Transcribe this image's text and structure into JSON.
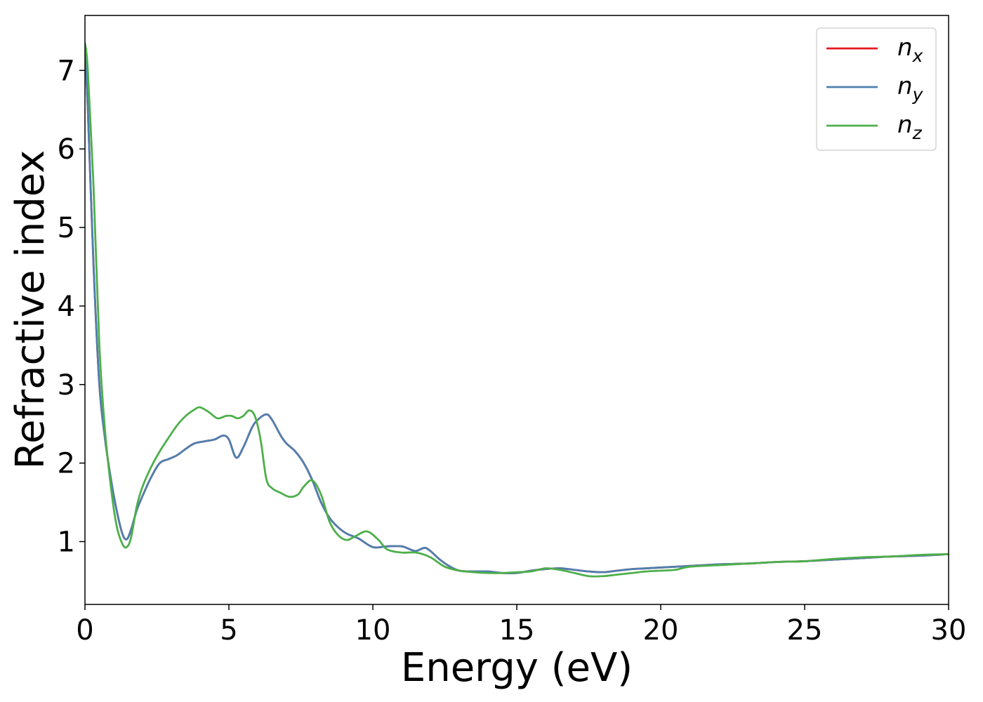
{
  "chart_data": {
    "type": "line",
    "title": "",
    "xlabel": "Energy (eV)",
    "ylabel": "Refractive index",
    "xlim": [
      0,
      30
    ],
    "ylim": [
      0.2,
      7.7
    ],
    "xticks": [
      0,
      5,
      10,
      15,
      20,
      25,
      30
    ],
    "yticks": [
      1,
      2,
      3,
      4,
      5,
      6,
      7
    ],
    "grid": false,
    "legend_position": "top-right",
    "series": [
      {
        "name": "n",
        "subscript": "x",
        "color": "#e41a1c",
        "x": [
          0,
          0.1,
          0.3,
          0.5,
          0.7,
          0.9,
          1.1,
          1.3,
          1.45,
          1.6,
          1.8,
          2.0,
          2.3,
          2.6,
          2.9,
          3.2,
          3.5,
          3.8,
          4.2,
          4.5,
          4.8,
          5.0,
          5.25,
          5.5,
          5.8,
          6.0,
          6.3,
          6.5,
          6.8,
          7.0,
          7.3,
          7.6,
          7.9,
          8.2,
          8.5,
          8.8,
          9.1,
          9.5,
          10.0,
          10.5,
          11.0,
          11.3,
          11.5,
          11.8,
          12.0,
          12.3,
          12.6,
          13.0,
          13.5,
          14.0,
          14.5,
          15.0,
          15.5,
          16.0,
          16.5,
          17.0,
          17.5,
          18.0,
          18.5,
          19.0,
          19.5,
          20.0,
          21.0,
          22.0,
          23.0,
          24.0,
          25.0,
          26.0,
          27.0,
          28.0,
          29.0,
          30.0
        ],
        "y": [
          7.3,
          6.5,
          4.5,
          3.0,
          2.3,
          1.8,
          1.4,
          1.1,
          1.03,
          1.15,
          1.4,
          1.58,
          1.82,
          2.0,
          2.05,
          2.1,
          2.18,
          2.25,
          2.28,
          2.3,
          2.35,
          2.3,
          2.07,
          2.2,
          2.45,
          2.55,
          2.62,
          2.55,
          2.35,
          2.25,
          2.15,
          2.0,
          1.78,
          1.5,
          1.3,
          1.18,
          1.1,
          1.04,
          0.93,
          0.94,
          0.94,
          0.9,
          0.88,
          0.92,
          0.88,
          0.78,
          0.7,
          0.63,
          0.62,
          0.62,
          0.6,
          0.6,
          0.63,
          0.65,
          0.66,
          0.64,
          0.62,
          0.61,
          0.63,
          0.65,
          0.66,
          0.67,
          0.69,
          0.71,
          0.72,
          0.74,
          0.75,
          0.77,
          0.79,
          0.81,
          0.82,
          0.84
        ]
      },
      {
        "name": "n",
        "subscript": "y",
        "color": "#4e7fb0",
        "x": [
          0,
          0.1,
          0.3,
          0.5,
          0.7,
          0.9,
          1.1,
          1.3,
          1.45,
          1.6,
          1.8,
          2.0,
          2.3,
          2.6,
          2.9,
          3.2,
          3.5,
          3.8,
          4.2,
          4.5,
          4.8,
          5.0,
          5.25,
          5.5,
          5.8,
          6.0,
          6.3,
          6.5,
          6.8,
          7.0,
          7.3,
          7.6,
          7.9,
          8.2,
          8.5,
          8.8,
          9.1,
          9.5,
          10.0,
          10.5,
          11.0,
          11.3,
          11.5,
          11.8,
          12.0,
          12.3,
          12.6,
          13.0,
          13.5,
          14.0,
          14.5,
          15.0,
          15.5,
          16.0,
          16.5,
          17.0,
          17.5,
          18.0,
          18.5,
          19.0,
          19.5,
          20.0,
          21.0,
          22.0,
          23.0,
          24.0,
          25.0,
          26.0,
          27.0,
          28.0,
          29.0,
          30.0
        ],
        "y": [
          7.3,
          6.5,
          4.5,
          3.0,
          2.3,
          1.8,
          1.4,
          1.1,
          1.03,
          1.15,
          1.4,
          1.58,
          1.82,
          2.0,
          2.05,
          2.1,
          2.18,
          2.25,
          2.28,
          2.3,
          2.35,
          2.3,
          2.07,
          2.2,
          2.45,
          2.55,
          2.62,
          2.55,
          2.35,
          2.25,
          2.15,
          2.0,
          1.78,
          1.5,
          1.3,
          1.18,
          1.1,
          1.04,
          0.93,
          0.94,
          0.94,
          0.9,
          0.88,
          0.92,
          0.88,
          0.78,
          0.7,
          0.63,
          0.62,
          0.62,
          0.6,
          0.6,
          0.63,
          0.65,
          0.66,
          0.64,
          0.62,
          0.61,
          0.63,
          0.65,
          0.66,
          0.67,
          0.69,
          0.71,
          0.72,
          0.74,
          0.75,
          0.77,
          0.79,
          0.81,
          0.82,
          0.84
        ]
      },
      {
        "name": "n",
        "subscript": "z",
        "color": "#4daf4a",
        "x": [
          0,
          0.1,
          0.3,
          0.5,
          0.7,
          0.9,
          1.1,
          1.3,
          1.45,
          1.6,
          1.8,
          2.0,
          2.3,
          2.6,
          2.9,
          3.2,
          3.5,
          3.8,
          4.0,
          4.3,
          4.6,
          4.9,
          5.1,
          5.3,
          5.5,
          5.7,
          5.9,
          6.1,
          6.3,
          6.5,
          6.8,
          7.1,
          7.4,
          7.6,
          7.9,
          8.2,
          8.5,
          8.8,
          9.1,
          9.4,
          9.8,
          10.2,
          10.5,
          11.0,
          11.5,
          12.0,
          12.5,
          13.0,
          13.5,
          14.0,
          14.5,
          15.0,
          15.5,
          16.0,
          16.5,
          17.0,
          17.5,
          18.0,
          18.5,
          19.0,
          19.5,
          20.0,
          20.5,
          21.0,
          22.0,
          23.0,
          24.0,
          25.0,
          26.0,
          27.0,
          28.0,
          29.0,
          30.0
        ],
        "y": [
          7.35,
          7.0,
          5.5,
          3.5,
          2.4,
          1.7,
          1.2,
          0.97,
          0.93,
          1.05,
          1.45,
          1.7,
          1.95,
          2.15,
          2.32,
          2.48,
          2.6,
          2.68,
          2.71,
          2.65,
          2.57,
          2.6,
          2.6,
          2.57,
          2.6,
          2.67,
          2.6,
          2.3,
          1.8,
          1.68,
          1.62,
          1.57,
          1.6,
          1.7,
          1.78,
          1.6,
          1.25,
          1.08,
          1.02,
          1.07,
          1.13,
          1.02,
          0.9,
          0.86,
          0.86,
          0.8,
          0.68,
          0.63,
          0.61,
          0.6,
          0.6,
          0.61,
          0.62,
          0.66,
          0.64,
          0.6,
          0.56,
          0.56,
          0.58,
          0.6,
          0.62,
          0.63,
          0.64,
          0.68,
          0.7,
          0.72,
          0.74,
          0.75,
          0.78,
          0.8,
          0.81,
          0.83,
          0.84
        ]
      }
    ]
  }
}
